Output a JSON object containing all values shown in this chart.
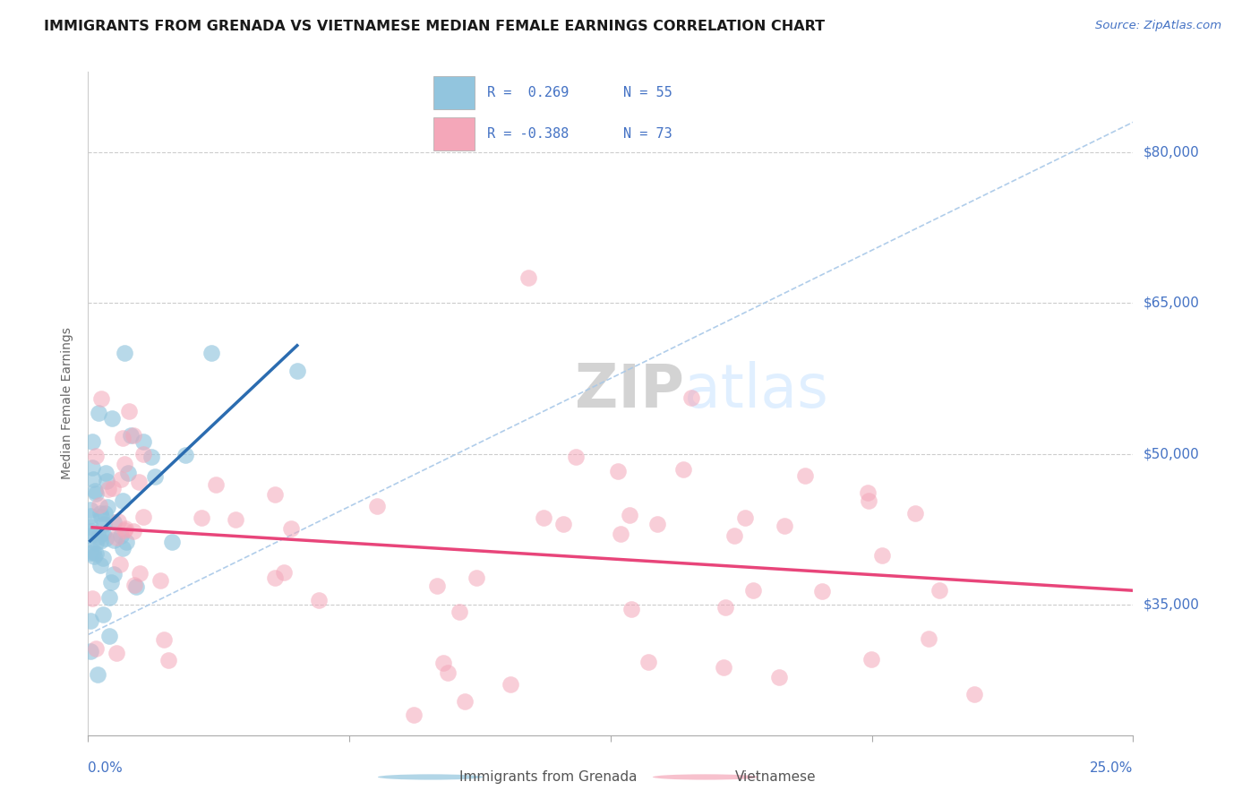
{
  "title": "IMMIGRANTS FROM GRENADA VS VIETNAMESE MEDIAN FEMALE EARNINGS CORRELATION CHART",
  "source": "Source: ZipAtlas.com",
  "ylabel": "Median Female Earnings",
  "xlim": [
    0.0,
    25.0
  ],
  "ylim": [
    22000,
    88000
  ],
  "grenada_R": 0.269,
  "grenada_N": 55,
  "vietnamese_R": -0.388,
  "vietnamese_N": 73,
  "grenada_color": "#92c5de",
  "vietnamese_color": "#f4a7b9",
  "grenada_line_color": "#2b6cb0",
  "vietnamese_line_color": "#e8457a",
  "ref_line_color": "#a8c8e8",
  "title_color": "#1a1a1a",
  "axis_label_color": "#4472c4",
  "ylabel_color": "#666666",
  "grid_color": "#cccccc",
  "watermark_text": "ZIPatlas",
  "watermark_color": "#ddeeff",
  "background_color": "#ffffff",
  "ytick_vals": [
    35000,
    50000,
    65000,
    80000
  ],
  "ytick_labels": [
    "$35,000",
    "$50,000",
    "$65,000",
    "$80,000"
  ],
  "xtick_vals": [
    0.0,
    6.25,
    12.5,
    18.75,
    25.0
  ],
  "legend_text_color": "#4472c4",
  "legend_r1": "R =  0.269",
  "legend_n1": "N = 55",
  "legend_r2": "R = -0.388",
  "legend_n2": "N = 73"
}
